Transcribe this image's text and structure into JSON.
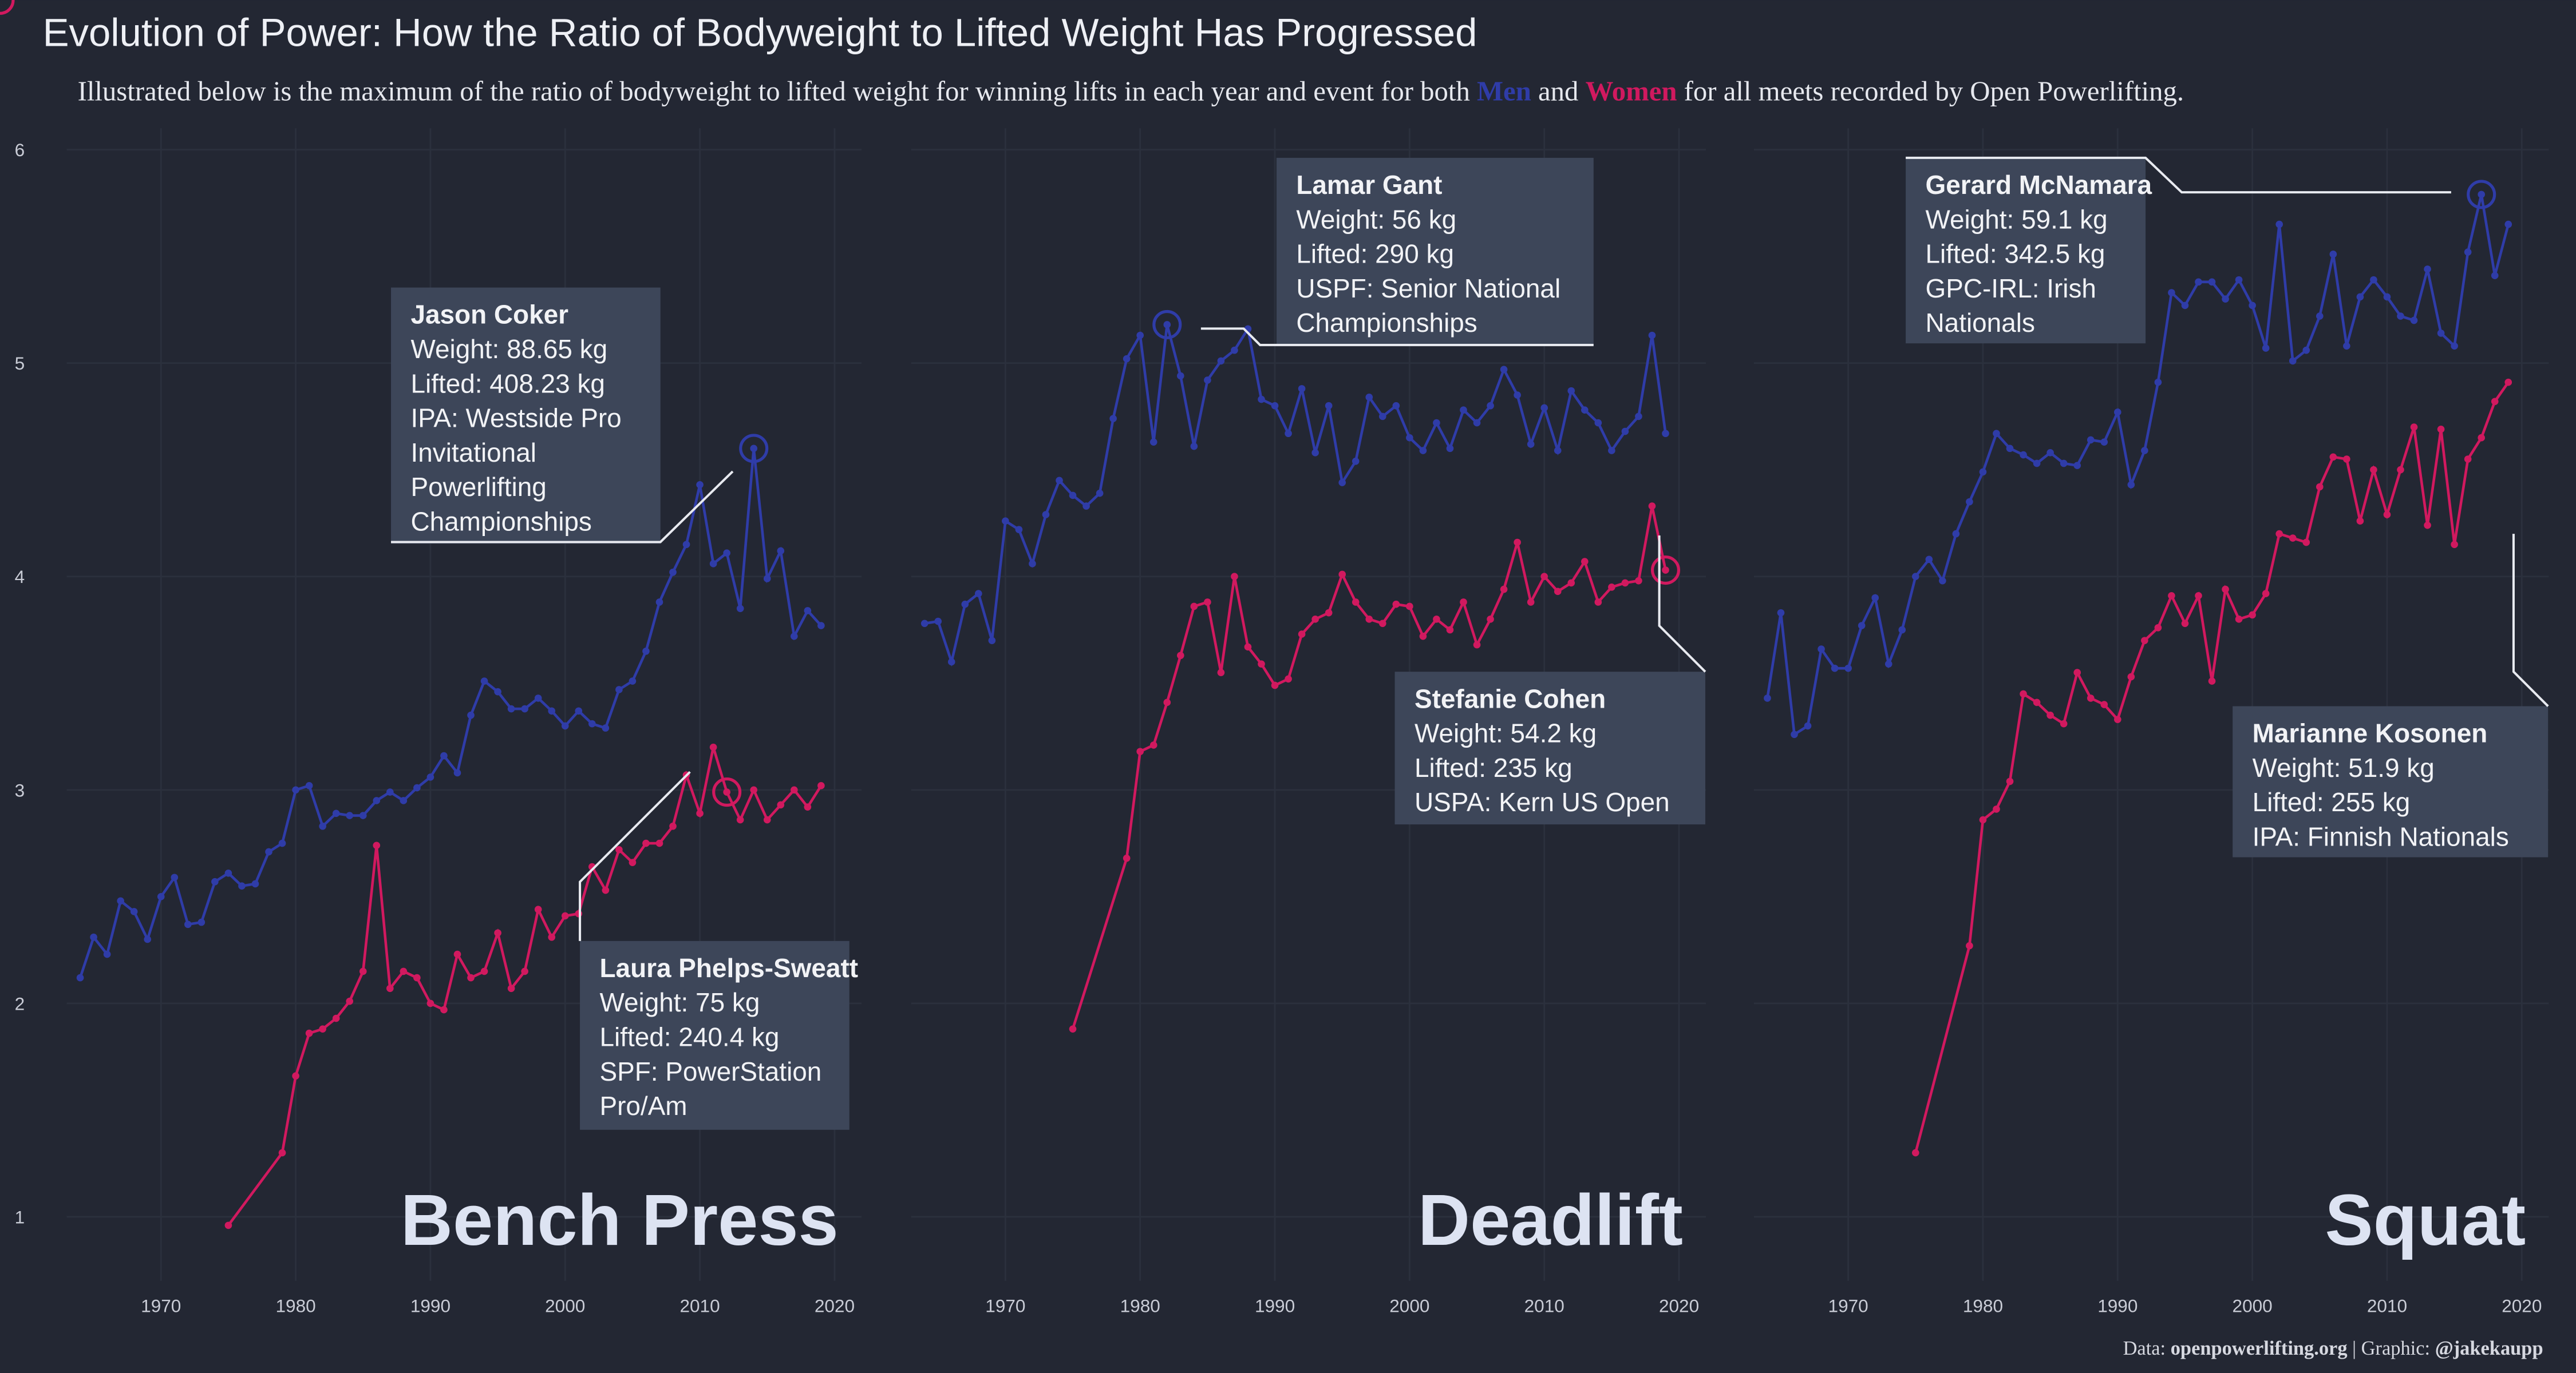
{
  "title": "Evolution of Power: How the Ratio of Bodyweight to Lifted Weight Has Progressed",
  "subtitle": [
    "Illustrated below is the maximum of the ratio of bodyweight to lifted weight for winning lifts in each year and event for both ",
    " and ",
    " for all meets recorded by Open Powerlifting."
  ],
  "caption": [
    "Data: ",
    "openpowerlifting.org",
    " | Graphic: ",
    "@jakekaupp"
  ],
  "chart_data": [
    {
      "type": "line",
      "title": "Bench Press",
      "xlim": [
        1963,
        2022
      ],
      "xticks": [
        1970,
        1980,
        1990,
        2000,
        2010,
        2020
      ],
      "ylim": [
        0.7,
        6.1
      ],
      "yticks": [
        1,
        2,
        3,
        4,
        5,
        6
      ],
      "grid": true,
      "series": [
        {
          "name": "Men",
          "color": "#2f3ca8",
          "x": [
            1964,
            1965,
            1966,
            1967,
            1968,
            1969,
            1970,
            1971,
            1972,
            1973,
            1974,
            1975,
            1976,
            1977,
            1978,
            1979,
            1980,
            1981,
            1982,
            1983,
            1984,
            1985,
            1986,
            1987,
            1988,
            1989,
            1990,
            1991,
            1992,
            1993,
            1994,
            1995,
            1996,
            1997,
            1998,
            1999,
            2000,
            2001,
            2002,
            2003,
            2004,
            2005,
            2006,
            2007,
            2008,
            2009,
            2010,
            2011,
            2012,
            2013,
            2014,
            2015,
            2016,
            2017,
            2018,
            2019
          ],
          "values": [
            2.12,
            2.31,
            2.23,
            2.48,
            2.43,
            2.3,
            2.5,
            2.59,
            2.37,
            2.38,
            2.57,
            2.61,
            2.55,
            2.56,
            2.71,
            2.75,
            3.0,
            3.02,
            2.83,
            2.89,
            2.88,
            2.88,
            2.95,
            2.99,
            2.95,
            3.01,
            3.06,
            3.16,
            3.08,
            3.35,
            3.51,
            3.46,
            3.38,
            3.38,
            3.43,
            3.37,
            3.3,
            3.37,
            3.31,
            3.29,
            3.47,
            3.51,
            3.65,
            3.88,
            4.02,
            4.15,
            4.43,
            4.06,
            4.11,
            3.85,
            4.6,
            3.99,
            4.12,
            3.72,
            3.84,
            3.77
          ]
        },
        {
          "name": "Women",
          "color": "#d1195f",
          "x": [
            1975,
            1979,
            1980,
            1981,
            1982,
            1983,
            1984,
            1985,
            1986,
            1987,
            1988,
            1989,
            1990,
            1991,
            1992,
            1993,
            1994,
            1995,
            1996,
            1997,
            1998,
            1999,
            2000,
            2001,
            2002,
            2003,
            2004,
            2005,
            2006,
            2007,
            2008,
            2009,
            2010,
            2011,
            2012,
            2013,
            2014,
            2015,
            2016,
            2017,
            2018,
            2019
          ],
          "values": [
            0.96,
            1.3,
            1.66,
            1.86,
            1.88,
            1.93,
            2.01,
            2.15,
            2.74,
            2.07,
            2.15,
            2.12,
            2.0,
            1.97,
            2.23,
            2.12,
            2.15,
            2.33,
            2.07,
            2.15,
            2.44,
            2.31,
            2.41,
            2.42,
            2.64,
            2.53,
            2.72,
            2.66,
            2.75,
            2.75,
            2.83,
            3.07,
            2.89,
            3.2,
            2.99,
            2.86,
            3.0,
            2.86,
            2.93,
            3.0,
            2.92,
            3.02
          ]
        }
      ],
      "annotations": [
        {
          "name": "Jason Coker",
          "lines": [
            "Weight: 88.65 kg",
            "Lifted: 408.23 kg",
            "IPA: Westside Pro",
            "Invitational",
            "Powerlifting",
            "Championships"
          ]
        },
        {
          "name": "Laura Phelps-Sweatt",
          "lines": [
            "Weight: 75 kg",
            "Lifted: 240.4 kg",
            "SPF: PowerStation",
            "Pro/Am"
          ]
        }
      ]
    },
    {
      "type": "line",
      "title": "Deadlift",
      "xlim": [
        1963,
        2022
      ],
      "xticks": [
        1970,
        1980,
        1990,
        2000,
        2010,
        2020
      ],
      "ylim": [
        0.7,
        6.1
      ],
      "yticks": [
        1,
        2,
        3,
        4,
        5,
        6
      ],
      "grid": true,
      "series": [
        {
          "name": "Men",
          "color": "#2f3ca8",
          "x": [
            1964,
            1965,
            1966,
            1967,
            1968,
            1969,
            1970,
            1971,
            1972,
            1973,
            1974,
            1975,
            1976,
            1977,
            1978,
            1979,
            1980,
            1981,
            1982,
            1983,
            1984,
            1985,
            1986,
            1987,
            1988,
            1989,
            1990,
            1991,
            1992,
            1993,
            1994,
            1995,
            1996,
            1997,
            1998,
            1999,
            2000,
            2001,
            2002,
            2003,
            2004,
            2005,
            2006,
            2007,
            2008,
            2009,
            2010,
            2011,
            2012,
            2013,
            2014,
            2015,
            2016,
            2017,
            2018,
            2019
          ],
          "values": [
            3.78,
            3.79,
            3.6,
            3.87,
            3.92,
            3.7,
            4.26,
            4.22,
            4.06,
            4.29,
            4.45,
            4.38,
            4.33,
            4.39,
            4.74,
            5.02,
            5.13,
            4.63,
            5.18,
            4.94,
            4.61,
            4.92,
            5.01,
            5.06,
            5.16,
            4.83,
            4.8,
            4.67,
            4.88,
            4.58,
            4.8,
            4.44,
            4.54,
            4.84,
            4.75,
            4.8,
            4.65,
            4.59,
            4.72,
            4.6,
            4.78,
            4.72,
            4.8,
            4.97,
            4.85,
            4.62,
            4.79,
            4.59,
            4.87,
            4.78,
            4.72,
            4.59,
            4.68,
            4.75,
            5.13,
            4.67
          ]
        },
        {
          "name": "Women",
          "color": "#d1195f",
          "x": [
            1975,
            1979,
            1980,
            1981,
            1982,
            1983,
            1984,
            1985,
            1986,
            1987,
            1988,
            1989,
            1990,
            1991,
            1992,
            1993,
            1994,
            1995,
            1996,
            1997,
            1998,
            1999,
            2000,
            2001,
            2002,
            2003,
            2004,
            2005,
            2006,
            2007,
            2008,
            2009,
            2010,
            2011,
            2012,
            2013,
            2014,
            2015,
            2016,
            2017,
            2018,
            2019
          ],
          "values": [
            1.88,
            2.68,
            3.18,
            3.21,
            3.41,
            3.63,
            3.86,
            3.88,
            3.55,
            4.0,
            3.67,
            3.59,
            3.49,
            3.52,
            3.73,
            3.8,
            3.83,
            4.01,
            3.88,
            3.8,
            3.78,
            3.87,
            3.86,
            3.72,
            3.8,
            3.75,
            3.88,
            3.68,
            3.8,
            3.94,
            4.16,
            3.88,
            4.0,
            3.93,
            3.97,
            4.07,
            3.88,
            3.95,
            3.97,
            3.98,
            4.33,
            4.03
          ]
        }
      ],
      "annotations": [
        {
          "name": "Lamar Gant",
          "lines": [
            "Weight: 56 kg",
            "Lifted: 290 kg",
            "USPF: Senior National",
            "Championships"
          ]
        },
        {
          "name": "Stefanie Cohen",
          "lines": [
            "Weight: 54.2 kg",
            "Lifted: 235 kg",
            "USPA: Kern US Open"
          ]
        }
      ]
    },
    {
      "type": "line",
      "title": "Squat",
      "xlim": [
        1963,
        2022
      ],
      "xticks": [
        1970,
        1980,
        1990,
        2000,
        2010,
        2020
      ],
      "ylim": [
        0.7,
        6.1
      ],
      "yticks": [
        1,
        2,
        3,
        4,
        5,
        6
      ],
      "grid": true,
      "series": [
        {
          "name": "Men",
          "color": "#2f3ca8",
          "x": [
            1964,
            1965,
            1966,
            1967,
            1968,
            1969,
            1970,
            1971,
            1972,
            1973,
            1974,
            1975,
            1976,
            1977,
            1978,
            1979,
            1980,
            1981,
            1982,
            1983,
            1984,
            1985,
            1986,
            1987,
            1988,
            1989,
            1990,
            1991,
            1992,
            1993,
            1994,
            1995,
            1996,
            1997,
            1998,
            1999,
            2000,
            2001,
            2002,
            2003,
            2004,
            2005,
            2006,
            2007,
            2008,
            2009,
            2010,
            2011,
            2012,
            2013,
            2014,
            2015,
            2016,
            2017,
            2018,
            2019
          ],
          "values": [
            3.43,
            3.83,
            3.26,
            3.3,
            3.66,
            3.57,
            3.57,
            3.77,
            3.9,
            3.59,
            3.75,
            4.0,
            4.08,
            3.98,
            4.2,
            4.35,
            4.49,
            4.67,
            4.6,
            4.57,
            4.53,
            4.58,
            4.53,
            4.52,
            4.64,
            4.63,
            4.77,
            4.43,
            4.59,
            4.91,
            5.33,
            5.27,
            5.38,
            5.38,
            5.3,
            5.39,
            5.27,
            5.07,
            5.65,
            5.01,
            5.06,
            5.22,
            5.51,
            5.08,
            5.31,
            5.39,
            5.31,
            5.22,
            5.2,
            5.44,
            5.14,
            5.08,
            5.52,
            5.79,
            5.41,
            5.65
          ]
        },
        {
          "name": "Women",
          "color": "#d1195f",
          "x": [
            1975,
            1979,
            1980,
            1981,
            1982,
            1983,
            1984,
            1985,
            1986,
            1987,
            1988,
            1989,
            1990,
            1991,
            1992,
            1993,
            1994,
            1995,
            1996,
            1997,
            1998,
            1999,
            2000,
            2001,
            2002,
            2003,
            2004,
            2005,
            2006,
            2007,
            2008,
            2009,
            2010,
            2011,
            2012,
            2013,
            2014,
            2015,
            2016,
            2017,
            2018,
            2019
          ],
          "values": [
            1.3,
            2.27,
            2.86,
            2.91,
            3.04,
            3.45,
            3.41,
            3.35,
            3.31,
            3.55,
            3.43,
            3.4,
            3.33,
            3.53,
            3.7,
            3.76,
            3.91,
            3.78,
            3.91,
            3.51,
            3.94,
            3.8,
            3.82,
            3.92,
            4.2,
            4.18,
            4.16,
            4.42,
            4.56,
            4.55,
            4.26,
            4.5,
            4.29,
            4.5,
            4.7,
            4.24,
            4.69,
            4.15,
            4.55,
            4.65,
            4.82,
            4.91
          ]
        }
      ],
      "annotations": [
        {
          "name": "Gerard McNamara",
          "lines": [
            "Weight: 59.1 kg",
            "Lifted: 342.5 kg",
            "GPC-IRL: Irish",
            "Nationals"
          ]
        },
        {
          "name": "Marianne Kosonen",
          "lines": [
            "Weight: 51.9 kg",
            "Lifted: 255 kg",
            "IPA: Finnish Nationals"
          ]
        }
      ]
    }
  ]
}
